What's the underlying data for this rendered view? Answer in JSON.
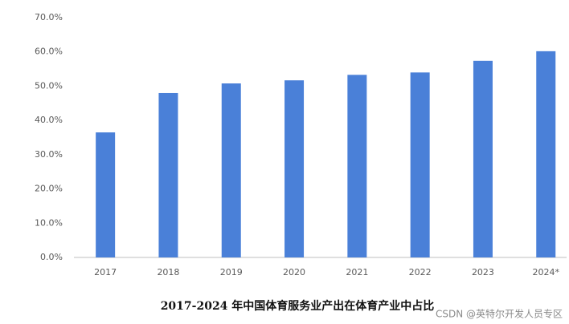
{
  "chart_data": {
    "type": "bar",
    "title": "2017-2024 年中国体育服务业产出在体育产业中占比",
    "watermark": "CSDN @英特尔开发人员专区",
    "categories": [
      "2017",
      "2018",
      "2019",
      "2020",
      "2021",
      "2022",
      "2023",
      "2024*"
    ],
    "values": [
      36.5,
      48,
      50.8,
      51.7,
      53.3,
      54,
      57.4,
      60.2
    ],
    "color": "#4a80d8",
    "ylim": [
      0,
      70
    ],
    "yticks": [
      {
        "value": 0,
        "label": "0.0%"
      },
      {
        "value": 10,
        "label": "10.0%"
      },
      {
        "value": 20,
        "label": "20.0%"
      },
      {
        "value": 30,
        "label": "30.0%"
      },
      {
        "value": 40,
        "label": "40.0%"
      },
      {
        "value": 50,
        "label": "50.0%"
      },
      {
        "value": 60,
        "label": "60.0%"
      },
      {
        "value": 70,
        "label": "70.0%"
      }
    ],
    "grid": false
  }
}
